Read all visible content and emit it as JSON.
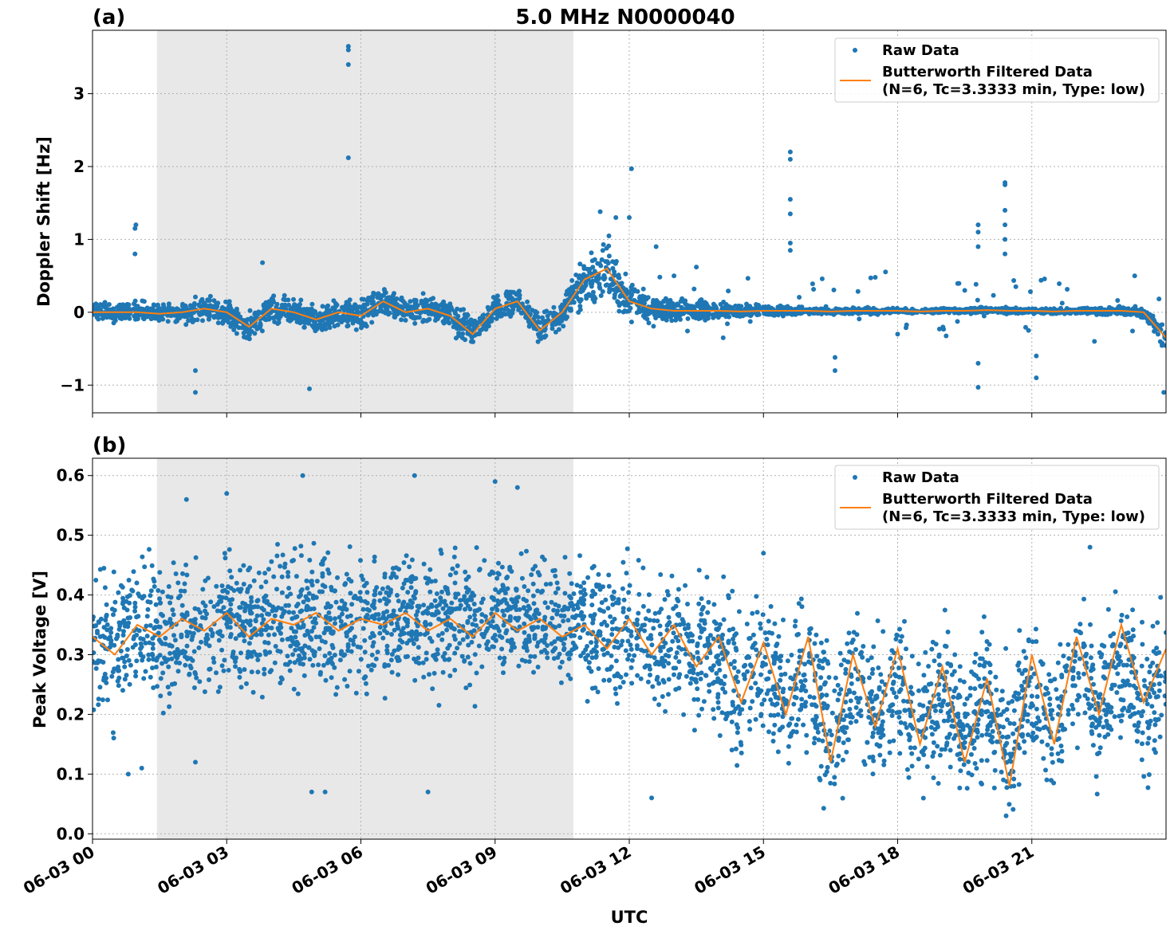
{
  "title": "5.0 MHz N0000040",
  "xlabel": "UTC",
  "x_tick_labels": [
    "06-03 00",
    "06-03 03",
    "06-03 06",
    "06-03 09",
    "06-03 12",
    "06-03 15",
    "06-03 18",
    "06-03 21"
  ],
  "colors": {
    "raw": "#1f77b4",
    "filtered": "#ff7f0e",
    "shaded": "#e8e8e8",
    "grid": "#b0b0b0"
  },
  "chart_data": [
    {
      "type": "scatter",
      "panel_label": "(a)",
      "ylabel": "Doppler Shift [Hz]",
      "xlim_hours": [
        0,
        24
      ],
      "ylim": [
        -1.38,
        3.87
      ],
      "yticks": [
        -1,
        0,
        1,
        2,
        3
      ],
      "y_tick_labels": [
        "−1",
        "0",
        "1",
        "2",
        "3"
      ],
      "grid": true,
      "shaded_region_hours": [
        1.44,
        10.75
      ],
      "legend": {
        "placement": "top-right",
        "raw": "Raw Data",
        "filtered_line1": "Butterworth Filtered Data",
        "filtered_line2": "(N=6, Tc=3.3333 min, Type: low)"
      },
      "filtered_step_hours": 0.5,
      "filtered": [
        0,
        0,
        0,
        -0.02,
        0,
        0.05,
        0,
        -0.2,
        0.05,
        0,
        -0.1,
        0,
        -0.05,
        0.15,
        0,
        0.05,
        -0.05,
        -0.3,
        0.05,
        0.15,
        -0.25,
        0,
        0.45,
        0.6,
        0.15,
        0.05,
        0.02,
        0.02,
        0.02,
        0.01,
        0.02,
        0.02,
        0.02,
        0.01,
        0.02,
        0.02,
        0.02,
        0.01,
        0.02,
        0.02,
        0.03,
        0.02,
        0.02,
        0.01,
        0.02,
        0.02,
        0.02,
        0,
        -0.35
      ],
      "raw_spread_step_hours": 2,
      "raw_spread": [
        0.15,
        0.2,
        0.25,
        0.25,
        0.25,
        0.25,
        0.3,
        0.15,
        0.06,
        0.05,
        0.05,
        0.05,
        0.15
      ],
      "raw_outliers": [
        [
          0.95,
          1.15
        ],
        [
          0.97,
          1.2
        ],
        [
          0.95,
          0.8
        ],
        [
          2.3,
          -0.8
        ],
        [
          2.3,
          -1.1
        ],
        [
          4.85,
          -1.05
        ],
        [
          5.72,
          3.65
        ],
        [
          5.72,
          3.6
        ],
        [
          5.72,
          3.4
        ],
        [
          5.72,
          2.12
        ],
        [
          3.8,
          0.68
        ],
        [
          12.05,
          1.97
        ],
        [
          12.0,
          1.3
        ],
        [
          11.35,
          1.38
        ],
        [
          11.7,
          1.3
        ],
        [
          15.6,
          2.2
        ],
        [
          15.6,
          2.1
        ],
        [
          15.6,
          1.55
        ],
        [
          15.6,
          1.35
        ],
        [
          15.6,
          0.95
        ],
        [
          15.6,
          0.85
        ],
        [
          19.8,
          1.2
        ],
        [
          19.8,
          1.1
        ],
        [
          19.8,
          0.9
        ],
        [
          19.8,
          -1.03
        ],
        [
          19.8,
          -0.7
        ],
        [
          20.4,
          1.78
        ],
        [
          20.4,
          1.75
        ],
        [
          20.4,
          1.4
        ],
        [
          20.4,
          1.2
        ],
        [
          20.4,
          1.0
        ],
        [
          20.4,
          0.8
        ],
        [
          21.1,
          -0.9
        ],
        [
          21.1,
          -0.6
        ],
        [
          23.95,
          -1.1
        ],
        [
          23.3,
          0.5
        ],
        [
          13.5,
          0.62
        ],
        [
          14.1,
          -0.35
        ],
        [
          16.6,
          -0.62
        ],
        [
          16.6,
          -0.8
        ],
        [
          17.5,
          0.48
        ],
        [
          18.0,
          -0.3
        ],
        [
          19.5,
          0.3
        ],
        [
          22.4,
          -0.4
        ],
        [
          13.0,
          0.5
        ],
        [
          12.6,
          0.9
        ]
      ]
    },
    {
      "type": "scatter",
      "panel_label": "(b)",
      "ylabel": "Peak Voltage [V]",
      "xlim_hours": [
        0,
        24
      ],
      "ylim": [
        -0.009,
        0.629
      ],
      "yticks": [
        0,
        0.1,
        0.2,
        0.3,
        0.4,
        0.5,
        0.6
      ],
      "y_tick_labels": [
        "0.0",
        "0.1",
        "0.2",
        "0.3",
        "0.4",
        "0.5",
        "0.6"
      ],
      "grid": true,
      "shaded_region_hours": [
        1.44,
        10.75
      ],
      "legend": {
        "placement": "top-right",
        "raw": "Raw Data",
        "filtered_line1": "Butterworth Filtered Data",
        "filtered_line2": "(N=6, Tc=3.3333 min, Type: low)"
      },
      "filtered_step_hours": 0.5,
      "filtered": [
        0.33,
        0.3,
        0.35,
        0.33,
        0.36,
        0.34,
        0.37,
        0.33,
        0.36,
        0.35,
        0.37,
        0.34,
        0.36,
        0.35,
        0.37,
        0.34,
        0.36,
        0.33,
        0.37,
        0.34,
        0.36,
        0.33,
        0.35,
        0.31,
        0.36,
        0.3,
        0.35,
        0.28,
        0.33,
        0.22,
        0.32,
        0.2,
        0.33,
        0.12,
        0.3,
        0.18,
        0.31,
        0.15,
        0.28,
        0.12,
        0.26,
        0.08,
        0.3,
        0.15,
        0.33,
        0.2,
        0.35,
        0.22,
        0.31
      ],
      "raw_spread_step_hours": 2,
      "raw_low": [
        0.15,
        0.18,
        0.2,
        0.2,
        0.22,
        0.22,
        0.2,
        0.12,
        0.05,
        0.03,
        0.03,
        0.05,
        0.05
      ],
      "raw_high": [
        0.5,
        0.5,
        0.52,
        0.53,
        0.52,
        0.53,
        0.5,
        0.45,
        0.4,
        0.38,
        0.36,
        0.38,
        0.42
      ],
      "raw_outliers": [
        [
          4.7,
          0.6
        ],
        [
          7.2,
          0.6
        ],
        [
          9.0,
          0.59
        ],
        [
          9.5,
          0.58
        ],
        [
          2.1,
          0.56
        ],
        [
          3.0,
          0.57
        ],
        [
          5.2,
          0.07
        ],
        [
          4.9,
          0.07
        ],
        [
          7.5,
          0.07
        ],
        [
          2.3,
          0.12
        ],
        [
          1.1,
          0.11
        ],
        [
          0.8,
          0.1
        ],
        [
          12.5,
          0.06
        ],
        [
          22.3,
          0.48
        ],
        [
          15.0,
          0.47
        ]
      ]
    }
  ]
}
